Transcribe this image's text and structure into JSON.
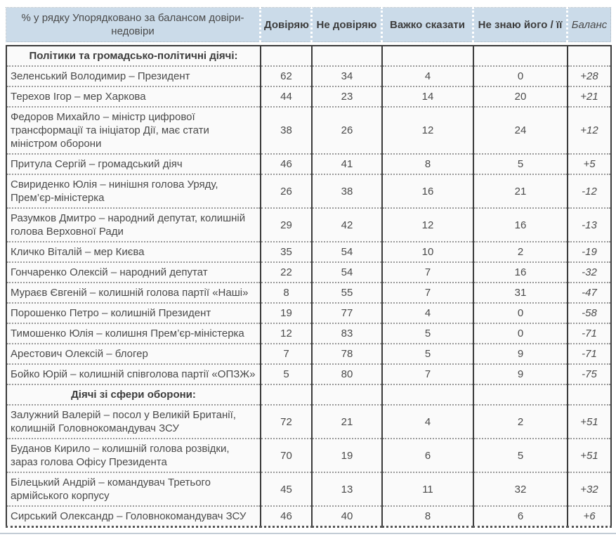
{
  "table": {
    "corner_header": "% у рядку Упорядковано за балансом довіри-недовіри",
    "columns": [
      "Довіряю",
      "Не довіряю",
      "Важко сказати",
      "Не знаю його / її",
      "Баланс"
    ],
    "rows": [
      {
        "type": "section",
        "title": "Політики та громадсько-політичні діячі:"
      },
      {
        "type": "data",
        "name": "Зеленський Володимир – Президент",
        "values": [
          "62",
          "34",
          "4",
          "0"
        ],
        "balance": "+28"
      },
      {
        "type": "data",
        "name": "Терехов Ігор – мер Харкова",
        "values": [
          "44",
          "23",
          "14",
          "20"
        ],
        "balance": "+21"
      },
      {
        "type": "data",
        "name": "Федоров Михайло – міністр цифрової трансформації та ініціатор Дії, має стати міністром оборони",
        "values": [
          "38",
          "26",
          "12",
          "24"
        ],
        "balance": "+12"
      },
      {
        "type": "data",
        "name": "Притула Сергій – громадський діяч",
        "values": [
          "46",
          "41",
          "8",
          "5"
        ],
        "balance": "+5"
      },
      {
        "type": "data",
        "name": "Свириденко Юлія – нинішня голова Уряду, Прем’єр-міністерка",
        "values": [
          "26",
          "38",
          "16",
          "21"
        ],
        "balance": "-12"
      },
      {
        "type": "data",
        "name": "Разумков Дмитро – народний депутат, колишній голова Верховної Ради",
        "values": [
          "29",
          "42",
          "12",
          "16"
        ],
        "balance": "-13"
      },
      {
        "type": "data",
        "name": "Кличко Віталій – мер Києва",
        "values": [
          "35",
          "54",
          "10",
          "2"
        ],
        "balance": "-19"
      },
      {
        "type": "data",
        "name": "Гончаренко Олексій – народний депутат",
        "values": [
          "22",
          "54",
          "7",
          "16"
        ],
        "balance": "-32"
      },
      {
        "type": "data",
        "name": "Мураєв Євгеній – колишній голова партії «Наші»",
        "values": [
          "8",
          "55",
          "7",
          "31"
        ],
        "balance": "-47"
      },
      {
        "type": "data",
        "name": "Порошенко Петро – колишній Президент",
        "values": [
          "19",
          "77",
          "4",
          "0"
        ],
        "balance": "-58"
      },
      {
        "type": "data",
        "name": "Тимошенко Юлія – колишня Прем’єр-міністерка",
        "values": [
          "12",
          "83",
          "5",
          "0"
        ],
        "balance": "-71"
      },
      {
        "type": "data",
        "name": "Арестович Олексій – блогер",
        "values": [
          "7",
          "78",
          "5",
          "9"
        ],
        "balance": "-71"
      },
      {
        "type": "data",
        "name": "Бойко Юрій – колишній співголова партії «ОПЗЖ»",
        "values": [
          "5",
          "80",
          "7",
          "9"
        ],
        "balance": "-75"
      },
      {
        "type": "section",
        "title": "Діячі зі сфери оборони:"
      },
      {
        "type": "data",
        "name": "Залужний Валерій – посол у Великій Британії, колишній Головнокомандувач ЗСУ",
        "values": [
          "72",
          "21",
          "4",
          "2"
        ],
        "balance": "+51"
      },
      {
        "type": "data",
        "name": "Буданов Кирило – колишній голова розвідки, зараз голова Офісу Президента",
        "values": [
          "70",
          "19",
          "6",
          "5"
        ],
        "balance": "+51"
      },
      {
        "type": "data",
        "name": "Білецький Андрій – командувач Третього армійського корпусу",
        "values": [
          "45",
          "13",
          "11",
          "32"
        ],
        "balance": "+32"
      },
      {
        "type": "data",
        "name": "Сирський Олександр – Головнокомандувач ЗСУ",
        "values": [
          "46",
          "40",
          "8",
          "6"
        ],
        "balance": "+6"
      }
    ]
  },
  "colors": {
    "header_bg": "#cbdbe9",
    "border_dark": "#3a3a3a",
    "border_dotted": "#999999",
    "text": "#4a4a4a",
    "section_text": "#3c3c3c",
    "cell_bg": "#fafafa",
    "bottom_line": "#c3ccd5"
  }
}
